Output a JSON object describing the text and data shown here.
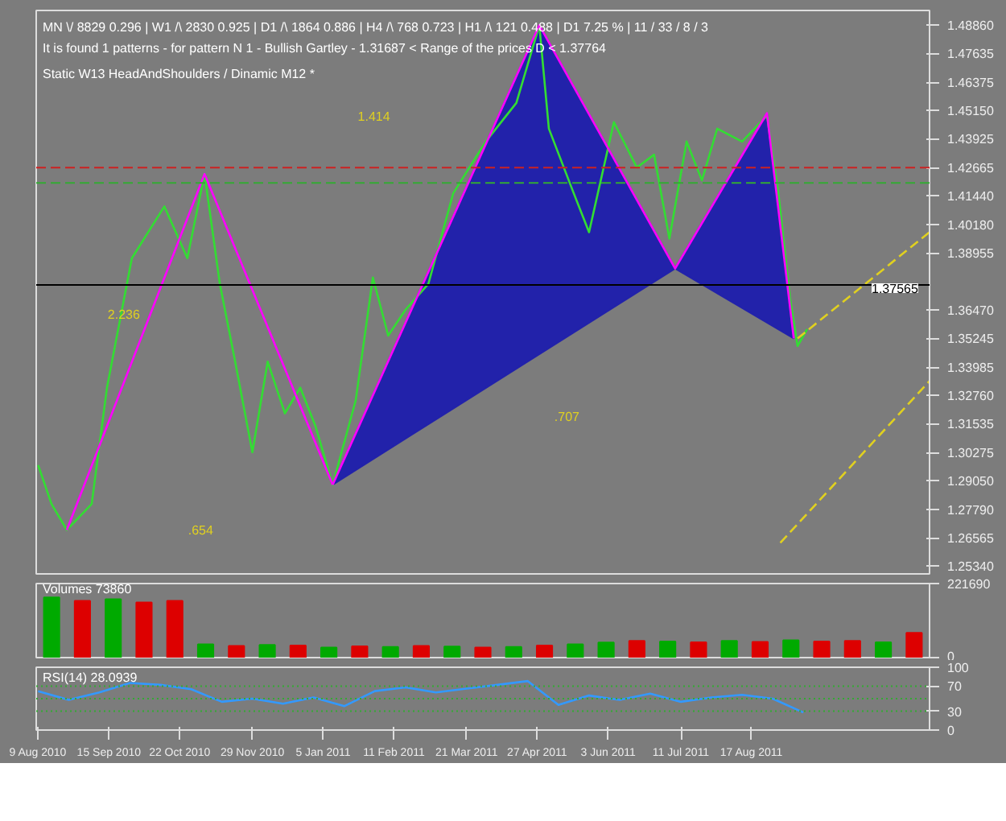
{
  "chart_data": [
    {
      "type": "line",
      "annotations": [
        "MN \\/ 8829  0.296 | W1 /\\ 2830  0.925 | D1 /\\ 1864  0.886 | H4 /\\ 768  0.723 | H1 /\\ 121  0.488 | D1  7.25 % | 11 / 33 / 8 / 3",
        "It is found 1 patterns  -  for pattern N 1 - Bullish Gartley - 1.31687 < Range of the prices D < 1.37764",
        "Static  W13   HeadAndShoulders  /  Dinamic  M12   *",
        "1.414",
        "2.236",
        ".707",
        ".654"
      ],
      "x": [
        "2010-08-09",
        "2010-08-16",
        "2010-08-24",
        "2010-09-06",
        "2010-09-14",
        "2010-09-27",
        "2010-10-14",
        "2010-10-26",
        "2010-11-04",
        "2010-11-12",
        "2010-11-20",
        "2010-11-29",
        "2010-12-07",
        "2010-12-16",
        "2010-12-24",
        "2011-01-01",
        "2011-01-10",
        "2011-01-22",
        "2011-01-31",
        "2011-02-08",
        "2011-02-17",
        "2011-03-01",
        "2011-03-14",
        "2011-03-31",
        "2011-04-16",
        "2011-04-28",
        "2011-05-03",
        "2011-05-16",
        "2011-05-24",
        "2011-06-06",
        "2011-06-18",
        "2011-06-27",
        "2011-07-05",
        "2011-07-14",
        "2011-07-22",
        "2011-07-30",
        "2011-08-12",
        "2011-08-25",
        "2011-08-31",
        "2011-09-06",
        "2011-09-10",
        "2011-09-15"
      ],
      "series": [
        {
          "type": "area",
          "x": [
            "2011-01-10",
            "2011-04-28",
            "2011-07-08",
            "2011-01-10"
          ],
          "color": "#2222aa",
          "values": [
            1.2888,
            1.4886,
            1.3828,
            1.2888
          ]
        },
        {
          "type": "area",
          "x": [
            "2011-07-08",
            "2011-08-25",
            "2011-09-08",
            "2011-07-08"
          ],
          "color": "#2222aa",
          "values": [
            1.3828,
            1.4503,
            1.3524,
            1.3828
          ]
        },
        {
          "color": "#33dd33",
          "values": [
            1.2973,
            1.2804,
            1.2691,
            1.2804,
            1.331,
            1.3873,
            1.4098,
            1.3873,
            1.4239,
            1.3761,
            1.3423,
            1.3029,
            1.3423,
            1.3198,
            1.331,
            1.3142,
            1.2888,
            1.3254,
            1.3789,
            1.3536,
            1.3648,
            1.3761,
            1.4155,
            1.438,
            1.4548,
            1.4886,
            1.4436,
            1.4155,
            1.3986,
            1.4464,
            1.4267,
            1.4323,
            1.3958,
            1.438,
            1.4211,
            1.4436,
            1.438,
            1.4492,
            1.4155,
            1.3704,
            1.3491,
            1.3564
          ]
        },
        {
          "x": [
            "2011-01-10",
            "2011-04-28",
            "2011-07-08",
            "2011-08-25",
            "2011-09-08"
          ],
          "color": "#ff00ff",
          "values": [
            1.2888,
            1.4886,
            1.3828,
            1.4503,
            1.3524
          ]
        },
        {
          "x": [
            "2010-08-24",
            "2010-11-04",
            "2011-01-10"
          ],
          "color": "#ff00ff",
          "values": [
            1.2691,
            1.4239,
            1.2888
          ]
        },
        {
          "x": [
            "2011-09-01",
            "2011-11-18"
          ],
          "color": "#e0d020",
          "line_style": "dashed",
          "values": [
            1.2635,
            1.3339
          ]
        },
        {
          "x": [
            "2011-09-10",
            "2011-11-18"
          ],
          "color": "#e0d020",
          "line_style": "dashed",
          "values": [
            1.3524,
            1.3986
          ]
        }
      ],
      "xlim": [
        "2010-08-08",
        "2011-11-18"
      ],
      "ylim": [
        1.25,
        1.495
      ],
      "yticks": [
        {
          "value": 1.2534,
          "label": "1.25340"
        },
        {
          "value": 1.26565,
          "label": "1.26565"
        },
        {
          "value": 1.2779,
          "label": "1.27790"
        },
        {
          "value": 1.2905,
          "label": "1.29050"
        },
        {
          "value": 1.30275,
          "label": "1.30275"
        },
        {
          "value": 1.31535,
          "label": "1.31535"
        },
        {
          "value": 1.3276,
          "label": "1.32760"
        },
        {
          "value": 1.33985,
          "label": "1.33985"
        },
        {
          "value": 1.35245,
          "label": "1.35245"
        },
        {
          "value": 1.3647,
          "label": "1.36470"
        },
        {
          "value": 1.38955,
          "label": "1.38955"
        },
        {
          "value": 1.4018,
          "label": "1.40180"
        },
        {
          "value": 1.4144,
          "label": "1.41440"
        },
        {
          "value": 1.42665,
          "label": "1.42665"
        },
        {
          "value": 1.43925,
          "label": "1.43925"
        },
        {
          "value": 1.4515,
          "label": "1.45150"
        },
        {
          "value": 1.46375,
          "label": "1.46375"
        },
        {
          "value": 1.47635,
          "label": "1.47635"
        },
        {
          "value": 1.4886,
          "label": "1.48860"
        }
      ],
      "ref_lines": [
        {
          "axis": "y",
          "value": 1.37565,
          "label": "1.37565",
          "color": "#000000",
          "line_style": "solid"
        },
        {
          "axis": "y",
          "value": 1.4267,
          "color": "#cc2222",
          "line_style": "dashed"
        },
        {
          "axis": "y",
          "value": 1.42,
          "color": "#33aa33",
          "line_style": "dashed"
        }
      ],
      "tick_labels": "y"
    },
    {
      "type": "bar",
      "title": "Volumes 73860",
      "categories": [
        null,
        null,
        null,
        null,
        null,
        null,
        null,
        null,
        null,
        null,
        null,
        null,
        null,
        null,
        null,
        null,
        null,
        null,
        null,
        null,
        null,
        null,
        null,
        null,
        null,
        null,
        null,
        null,
        null
      ],
      "values": [
        180000,
        170000,
        175000,
        165000,
        170000,
        40000,
        35000,
        38000,
        36000,
        30000,
        34000,
        32000,
        35000,
        33000,
        30000,
        32000,
        36000,
        40000,
        45000,
        50000,
        48000,
        46000,
        50000,
        47000,
        52000,
        48000,
        50000,
        46000,
        73860
      ],
      "colors": [
        "#00aa00",
        "#dd0000",
        "#00aa00",
        "#dd0000",
        "#dd0000",
        "#00aa00",
        "#dd0000",
        "#00aa00",
        "#dd0000",
        "#00aa00",
        "#dd0000",
        "#00aa00",
        "#dd0000",
        "#00aa00",
        "#dd0000",
        "#00aa00",
        "#dd0000",
        "#00aa00",
        "#00aa00",
        "#dd0000",
        "#00aa00",
        "#dd0000",
        "#00aa00",
        "#dd0000",
        "#00aa00",
        "#dd0000",
        "#dd0000",
        "#00aa00",
        "#dd0000"
      ],
      "ylim": [
        0,
        221690
      ],
      "yticks": [
        0,
        221690
      ],
      "tick_labels": "y"
    },
    {
      "type": "line",
      "title": "RSI(14) 28.0939",
      "x": [
        "2010-08-09",
        "2010-08-25",
        "2010-09-10",
        "2010-09-26",
        "2010-10-12",
        "2010-10-28",
        "2010-11-13",
        "2010-11-29",
        "2010-12-15",
        "2010-12-31",
        "2011-01-16",
        "2011-02-01",
        "2011-02-17",
        "2011-03-05",
        "2011-03-21",
        "2011-04-06",
        "2011-04-22",
        "2011-05-08",
        "2011-05-24",
        "2011-06-09",
        "2011-06-25",
        "2011-07-11",
        "2011-07-27",
        "2011-08-12",
        "2011-08-28",
        "2011-09-13"
      ],
      "series": [
        {
          "color": "#3399ff",
          "values": [
            62,
            48,
            60,
            75,
            72,
            65,
            45,
            50,
            42,
            52,
            38,
            62,
            68,
            60,
            66,
            72,
            78,
            40,
            55,
            48,
            58,
            45,
            52,
            56,
            50,
            28
          ]
        }
      ],
      "xlim": [
        "2010-08-08",
        "2011-11-18"
      ],
      "ylim": [
        0,
        100
      ],
      "yticks": [
        0,
        30,
        70,
        100
      ],
      "xticks": [
        {
          "value": "2010-08-09",
          "label": "9 Aug 2010"
        },
        {
          "value": "2010-09-15",
          "label": "15 Sep 2010"
        },
        {
          "value": "2010-10-22",
          "label": "22 Oct 2010"
        },
        {
          "value": "2010-11-29",
          "label": "29 Nov 2010"
        },
        {
          "value": "2011-01-05",
          "label": "5 Jan 2011"
        },
        {
          "value": "2011-02-11",
          "label": "11 Feb 2011"
        },
        {
          "value": "2011-03-21",
          "label": "21 Mar 2011"
        },
        {
          "value": "2011-04-27",
          "label": "27 Apr 2011"
        },
        {
          "value": "2011-06-03",
          "label": "3 Jun 2011"
        },
        {
          "value": "2011-07-11",
          "label": "11 Jul 2011"
        },
        {
          "value": "2011-08-17",
          "label": "17 Aug 2011"
        }
      ],
      "ref_lines": [
        {
          "axis": "y",
          "value": 30,
          "color": "#33aa33",
          "line_style": "dotted"
        },
        {
          "axis": "y",
          "value": 50,
          "color": "#33aa33",
          "line_style": "dotted"
        },
        {
          "axis": "y",
          "value": 70,
          "color": "#33aa33",
          "line_style": "dotted"
        }
      ]
    }
  ]
}
